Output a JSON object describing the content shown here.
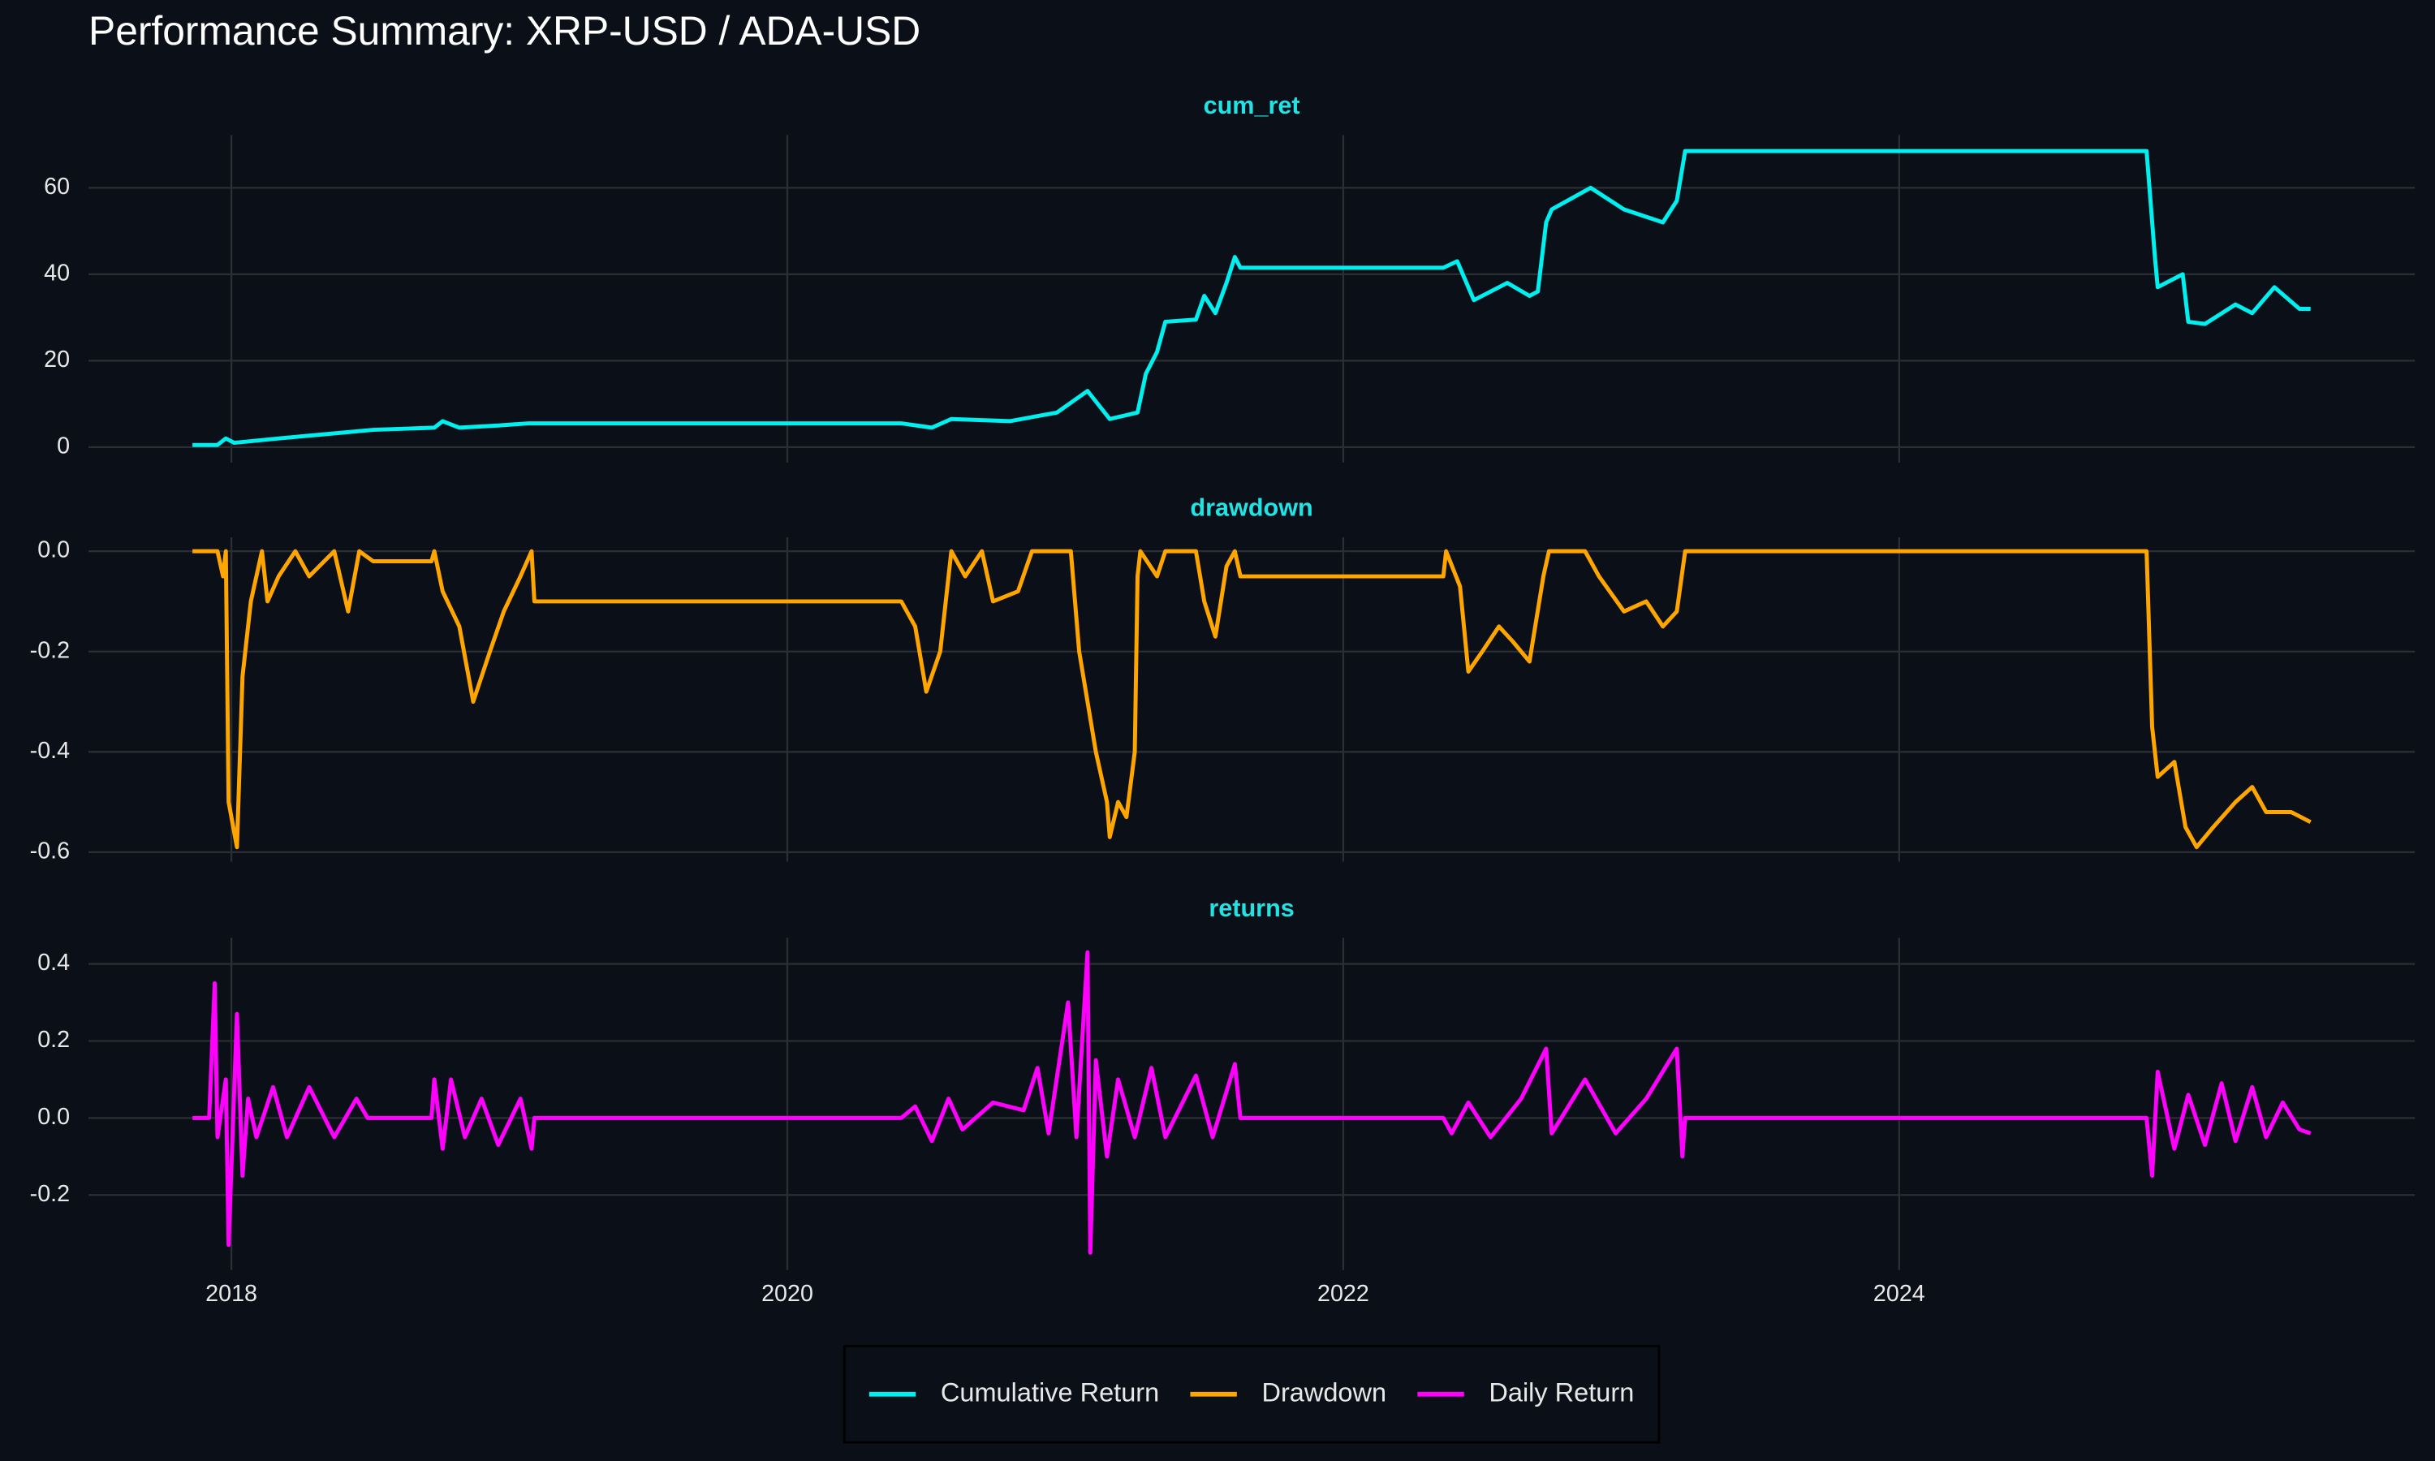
{
  "title": "Performance Summary: XRP-USD / ADA-USD",
  "legend_position": "bottom",
  "chart_data": [
    {
      "type": "line",
      "title": "cum_ret",
      "grid": true,
      "x": [
        2017.86,
        2017.95,
        2017.98,
        2018.01,
        2018.17,
        2018.34,
        2018.51,
        2018.73,
        2018.76,
        2018.82,
        2018.96,
        2019.07,
        2020.41,
        2020.52,
        2020.59,
        2020.8,
        2020.97,
        2021.08,
        2021.16,
        2021.26,
        2021.29,
        2021.33,
        2021.36,
        2021.47,
        2021.5,
        2021.54,
        2021.58,
        2021.61,
        2021.63,
        2022.36,
        2022.41,
        2022.45,
        2022.47,
        2022.59,
        2022.67,
        2022.7,
        2022.73,
        2022.75,
        2022.89,
        2023.01,
        2023.15,
        2023.2,
        2023.23,
        2024.89,
        2024.92,
        2024.93,
        2025.02,
        2025.04,
        2025.1,
        2025.21,
        2025.27,
        2025.35,
        2025.44,
        2025.48
      ],
      "series": [
        {
          "name": "Cumulative Return",
          "color": "#00f0f0",
          "values": [
            0.5,
            0.5,
            2,
            1,
            2,
            3,
            4,
            4.5,
            6,
            4.5,
            5,
            5.5,
            5.5,
            4.5,
            6.5,
            6,
            8,
            13,
            6.5,
            8,
            17,
            22,
            29,
            29.5,
            35,
            31,
            38,
            44,
            41.5,
            41.5,
            43,
            37,
            34,
            38,
            35,
            36,
            52,
            55,
            60,
            55,
            52,
            57,
            68.5,
            68.5,
            44,
            37,
            40,
            29,
            28.5,
            33,
            31,
            37,
            32,
            32
          ]
        }
      ],
      "xlim": [
        2017.486,
        2025.855
      ],
      "xticks": [
        2018,
        2020,
        2022,
        2024
      ],
      "ylim": [
        -3.6,
        72.2
      ],
      "yticks": [
        0,
        20,
        40,
        60
      ]
    },
    {
      "type": "line",
      "title": "drawdown",
      "grid": true,
      "x": [
        2017.86,
        2017.95,
        2017.97,
        2017.98,
        2017.99,
        2018.02,
        2018.04,
        2018.07,
        2018.11,
        2018.13,
        2018.17,
        2018.23,
        2018.28,
        2018.37,
        2018.42,
        2018.46,
        2018.51,
        2018.72,
        2018.73,
        2018.76,
        2018.82,
        2018.87,
        2018.93,
        2018.98,
        2019.04,
        2019.08,
        2019.09,
        2020.41,
        2020.46,
        2020.5,
        2020.55,
        2020.59,
        2020.64,
        2020.7,
        2020.74,
        2020.83,
        2020.88,
        2021.02,
        2021.05,
        2021.08,
        2021.11,
        2021.15,
        2021.16,
        2021.19,
        2021.22,
        2021.25,
        2021.26,
        2021.27,
        2021.33,
        2021.36,
        2021.47,
        2021.5,
        2021.54,
        2021.58,
        2021.61,
        2021.63,
        2022.36,
        2022.37,
        2022.42,
        2022.45,
        2022.5,
        2022.56,
        2022.61,
        2022.67,
        2022.72,
        2022.74,
        2022.87,
        2022.92,
        2023.01,
        2023.09,
        2023.15,
        2023.2,
        2023.23,
        2024.89,
        2024.91,
        2024.93,
        2024.99,
        2025.03,
        2025.07,
        2025.13,
        2025.21,
        2025.27,
        2025.32,
        2025.41,
        2025.48
      ],
      "series": [
        {
          "name": "Drawdown",
          "color": "#ffa500",
          "values": [
            0,
            0,
            -0.05,
            0,
            -0.5,
            -0.59,
            -0.25,
            -0.1,
            0,
            -0.1,
            -0.05,
            0,
            -0.05,
            0,
            -0.12,
            0,
            -0.02,
            -0.02,
            0,
            -0.08,
            -0.15,
            -0.3,
            -0.2,
            -0.12,
            -0.05,
            0,
            -0.1,
            -0.1,
            -0.15,
            -0.28,
            -0.2,
            0,
            -0.05,
            0,
            -0.1,
            -0.08,
            0,
            0,
            -0.2,
            -0.3,
            -0.4,
            -0.5,
            -0.57,
            -0.5,
            -0.53,
            -0.4,
            -0.05,
            0,
            -0.05,
            0,
            0,
            -0.1,
            -0.17,
            -0.03,
            0,
            -0.05,
            -0.05,
            0,
            -0.07,
            -0.24,
            -0.2,
            -0.15,
            -0.18,
            -0.22,
            -0.05,
            0,
            0,
            -0.05,
            -0.12,
            -0.1,
            -0.15,
            -0.12,
            0,
            0,
            -0.35,
            -0.45,
            -0.42,
            -0.55,
            -0.59,
            -0.55,
            -0.5,
            -0.47,
            -0.52,
            -0.52,
            -0.54
          ]
        }
      ],
      "xlim": [
        2017.486,
        2025.855
      ],
      "xticks": [
        2018,
        2020,
        2022,
        2024
      ],
      "ylim": [
        -0.619,
        0.028
      ],
      "yticks": [
        {
          "value": 0,
          "label": "0.0"
        },
        -0.2,
        -0.4,
        -0.6
      ]
    },
    {
      "type": "line",
      "title": "returns",
      "grid": true,
      "x": [
        2017.86,
        2017.92,
        2017.94,
        2017.95,
        2017.98,
        2017.99,
        2018.02,
        2018.04,
        2018.06,
        2018.09,
        2018.15,
        2018.2,
        2018.28,
        2018.37,
        2018.45,
        2018.49,
        2018.72,
        2018.73,
        2018.76,
        2018.79,
        2018.84,
        2018.9,
        2018.96,
        2019.04,
        2019.08,
        2019.09,
        2020.41,
        2020.46,
        2020.52,
        2020.58,
        2020.63,
        2020.74,
        2020.85,
        2020.9,
        2020.94,
        2021.01,
        2021.04,
        2021.08,
        2021.09,
        2021.11,
        2021.15,
        2021.19,
        2021.25,
        2021.31,
        2021.36,
        2021.47,
        2021.53,
        2021.61,
        2021.63,
        2022.36,
        2022.39,
        2022.45,
        2022.53,
        2022.64,
        2022.73,
        2022.75,
        2022.87,
        2022.98,
        2023.09,
        2023.2,
        2023.22,
        2023.23,
        2024.89,
        2024.91,
        2024.93,
        2024.99,
        2025.04,
        2025.1,
        2025.16,
        2025.21,
        2025.27,
        2025.32,
        2025.38,
        2025.44,
        2025.48
      ],
      "series": [
        {
          "name": "Daily Return",
          "color": "#ff00ff",
          "values": [
            0,
            0,
            0.35,
            -0.05,
            0.1,
            -0.33,
            0.27,
            -0.15,
            0.05,
            -0.05,
            0.08,
            -0.05,
            0.08,
            -0.05,
            0.05,
            0,
            0,
            0.1,
            -0.08,
            0.1,
            -0.05,
            0.05,
            -0.07,
            0.05,
            -0.08,
            0,
            0,
            0.03,
            -0.06,
            0.05,
            -0.03,
            0.04,
            0.02,
            0.13,
            -0.04,
            0.3,
            -0.05,
            0.43,
            -0.35,
            0.15,
            -0.1,
            0.1,
            -0.05,
            0.13,
            -0.05,
            0.11,
            -0.05,
            0.14,
            0,
            0,
            -0.04,
            0.04,
            -0.05,
            0.05,
            0.18,
            -0.04,
            0.1,
            -0.04,
            0.05,
            0.18,
            -0.1,
            0,
            0,
            -0.15,
            0.12,
            -0.08,
            0.06,
            -0.07,
            0.09,
            -0.06,
            0.08,
            -0.05,
            0.04,
            -0.03,
            -0.04
          ]
        }
      ],
      "xlim": [
        2017.486,
        2025.855
      ],
      "xticks": [
        2018,
        2020,
        2022,
        2024
      ],
      "ylim": [
        -0.395,
        0.468
      ],
      "yticks": [
        0.4,
        0.2,
        {
          "value": 0,
          "label": "0.0"
        },
        -0.2
      ]
    }
  ]
}
